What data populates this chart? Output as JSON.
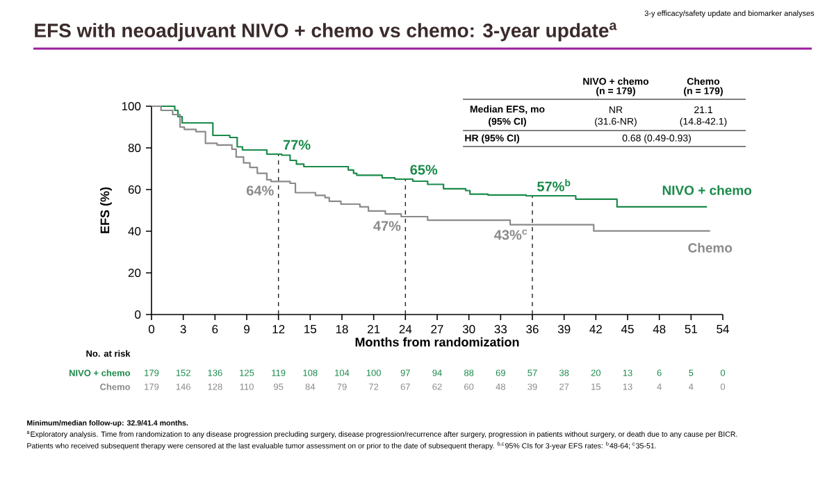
{
  "chart_data": {
    "type": "step",
    "title": "EFS with neoadjuvant NIVO + chemo vs chemo: 3-year update$^{a}$",
    "subtitle": "3-y efficacy/safety update and biomarker analyses",
    "xlabel": "Months from randomization",
    "ylabel": "EFS (%)",
    "xlim": [
      0,
      54
    ],
    "ylim": [
      0,
      100
    ],
    "xticks": [
      0,
      3,
      6,
      9,
      12,
      15,
      18,
      21,
      24,
      27,
      30,
      33,
      36,
      39,
      42,
      45,
      48,
      51,
      54
    ],
    "yticks": [
      0,
      20,
      40,
      60,
      80,
      100
    ],
    "legend": false,
    "series": [
      {
        "name": "NIVO + chemo",
        "color": "#1a8a4a",
        "x": [
          0,
          2.2,
          2.5,
          2.9,
          5.8,
          7.4,
          8.1,
          8.6,
          10.9,
          12.3,
          13.1,
          13.7,
          14.4,
          18.6,
          19.1,
          19.4,
          21.8,
          23.0,
          24.7,
          26.1,
          27.6,
          29.7,
          30.1,
          31.8,
          35.4,
          40.1,
          44.0,
          52.5
        ],
        "values": [
          100,
          98,
          95,
          92,
          86,
          85,
          80.5,
          79,
          77,
          76.5,
          74,
          72.2,
          71,
          69.4,
          67.8,
          66.9,
          65.6,
          65,
          64,
          62.5,
          60.4,
          59.5,
          57.8,
          57.4,
          57,
          55.4,
          51.7,
          51.7
        ]
      },
      {
        "name": "Chemo",
        "color": "#8a8a8a",
        "x": [
          0,
          0.9,
          2.0,
          2.7,
          3.1,
          4.2,
          5.1,
          6.2,
          7.6,
          8.0,
          8.7,
          9.3,
          10.0,
          10.9,
          11.3,
          13.1,
          13.6,
          15.5,
          16.4,
          16.8,
          17.9,
          19.7,
          20.5,
          22.1,
          23.6,
          26.1,
          33.9,
          41.8,
          52.8
        ],
        "values": [
          100,
          98,
          96,
          90,
          88.9,
          87.8,
          82.2,
          81.4,
          79.4,
          75.6,
          72.8,
          70.6,
          67.8,
          64.7,
          63.9,
          63,
          58.5,
          57.2,
          56.1,
          54.4,
          53,
          51.7,
          49.7,
          48.3,
          47,
          45.3,
          43.1,
          40.1,
          40.1
        ]
      }
    ],
    "ref_lines": [
      {
        "axis": "x",
        "value": 12,
        "line_style": "dashed",
        "color": "#222222"
      },
      {
        "axis": "x",
        "value": 24,
        "line_style": "dashed",
        "color": "#222222"
      },
      {
        "axis": "x",
        "value": 36,
        "line_style": "dashed",
        "color": "#222222"
      }
    ],
    "annotations": [
      {
        "text": "77%",
        "x": 12,
        "y": 77
      },
      {
        "text": "65%",
        "x": 24,
        "y": 65
      },
      {
        "text": "57%$^{b}$",
        "x": 36,
        "y": 57
      },
      {
        "text": "64%",
        "x": 12,
        "y": 64
      },
      {
        "text": "47%",
        "x": 24,
        "y": 47
      },
      {
        "text": "43%$^{c}$",
        "x": 36,
        "y": 43
      },
      "NIVO + chemo",
      "(n = 179)",
      "Chemo",
      "(n = 179)",
      "Median EFS, mo",
      "(95% CI)",
      "NR",
      "(31.6-NR)",
      "21.1",
      "(14.8-42.1)",
      "HR (95% CI)",
      "0.68 (0.49-0.93)",
      "No. at risk",
      "NIVO + chemo",
      "179",
      "152",
      "136",
      "125",
      "119",
      "108",
      "104",
      "100",
      "97",
      "94",
      "88",
      "69",
      "57",
      "38",
      "20",
      "13",
      "6",
      "5",
      "0",
      "Chemo",
      "179",
      "146",
      "128",
      "110",
      "95",
      "84",
      "79",
      "72",
      "67",
      "62",
      "60",
      "48",
      "39",
      "27",
      "15",
      "13",
      "4",
      "4",
      "0",
      "Minimum/median follow-up: 32.9/41.4 months.",
      "$^{a}$Exploratory analysis. Time from randomization to any disease progression precluding surgery, disease progression/recurrence after surgery, progression in patients without surgery, or death due to any cause per BICR.",
      "Patients who received subsequent therapy were censored at the last evaluable tumor assessment on or prior to the date of subsequent therapy. $^{b,c}$95% CIs for 3-year EFS rates: $^{b}$48-64; $^{c}$35-51."
    ]
  }
}
